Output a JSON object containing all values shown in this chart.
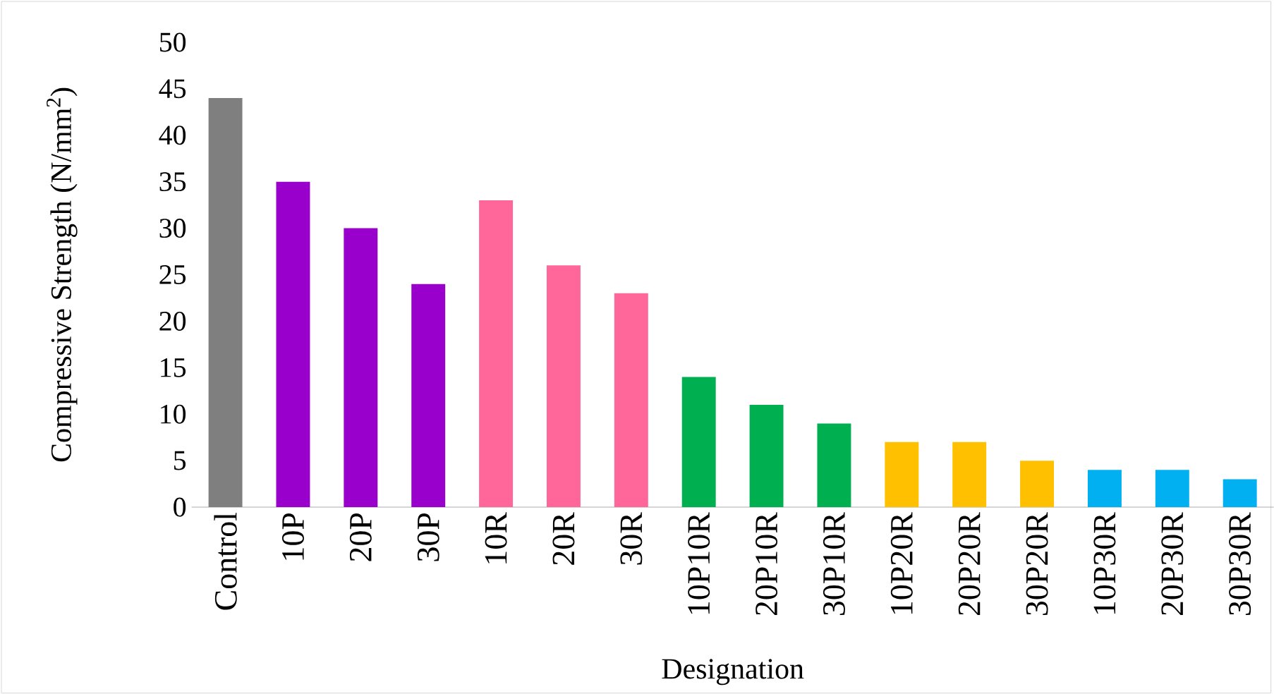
{
  "chart_data": {
    "type": "bar",
    "xlabel": "Designation",
    "ylabel": "Compressive Strength (N/mm$^{2}$)",
    "categories": [
      "Control",
      "10P",
      "20P",
      "30P",
      "10R",
      "20R",
      "30R",
      "10P10R",
      "20P10R",
      "30P10R",
      "10P20R",
      "20P20R",
      "30P20R",
      "10P30R",
      "20P30R",
      "30P30R"
    ],
    "values": [
      44,
      35,
      30,
      24,
      33,
      26,
      23,
      14,
      11,
      9,
      7,
      7,
      5,
      4,
      4,
      3
    ],
    "colors": [
      "#7f7f7f",
      "#9900cc",
      "#9900cc",
      "#9900cc",
      "#ff6699",
      "#ff6699",
      "#ff6699",
      "#00b050",
      "#00b050",
      "#00b050",
      "#ffc000",
      "#ffc000",
      "#ffc000",
      "#00b0f0",
      "#00b0f0",
      "#00b0f0"
    ],
    "ylim": [
      0,
      50
    ],
    "yticks": [
      0,
      5,
      10,
      15,
      20,
      25,
      30,
      35,
      40,
      45,
      50
    ],
    "grid": false
  }
}
